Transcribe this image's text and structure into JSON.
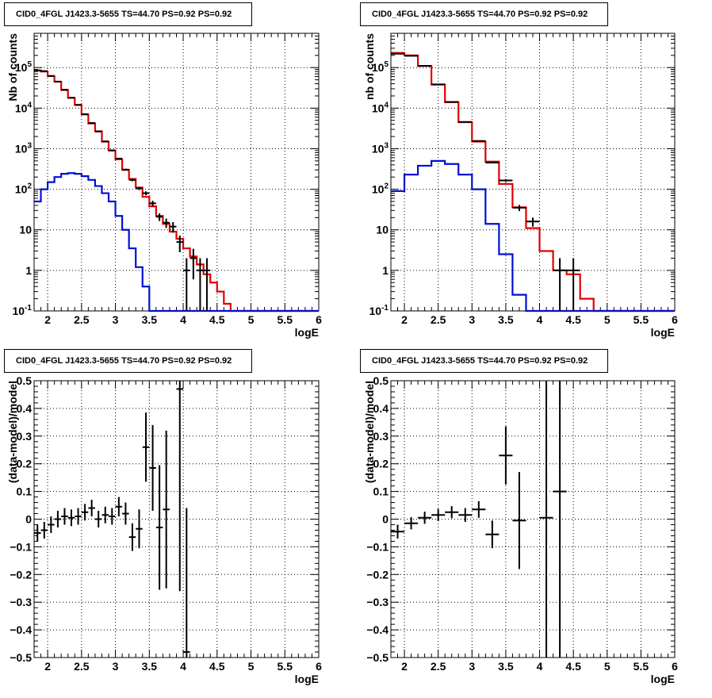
{
  "colors": {
    "data": "#000000",
    "model": "#e00000",
    "source": "#0010d0",
    "grid": "#000000"
  },
  "chart_data": [
    {
      "type": "line",
      "title": "CID0_4FGL J1423.3-5655 TS=44.70 PS=0.92 PS=0.92",
      "xlabel": "logE",
      "ylabel": "Nb of counts",
      "yscale": "log",
      "xlim": [
        1.8,
        6.0
      ],
      "ylim": [
        0.1,
        700000
      ],
      "xticks": [
        "2",
        "2.5",
        "3",
        "3.5",
        "4",
        "4.5",
        "5",
        "5.5",
        "6"
      ],
      "yticks": [
        "10^{-1}",
        "1",
        "10",
        "10^{2}",
        "10^{3}",
        "10^{4}",
        "10^{5}"
      ],
      "grid": true,
      "bin_edges": [
        1.8,
        1.9,
        2.0,
        2.1,
        2.2,
        2.3,
        2.4,
        2.5,
        2.6,
        2.7,
        2.8,
        2.9,
        3.0,
        3.1,
        3.2,
        3.3,
        3.4,
        3.5,
        3.6,
        3.7,
        3.8,
        3.9,
        4.0,
        4.1,
        4.2,
        4.3,
        4.4,
        4.5,
        4.6,
        4.7,
        4.8,
        4.9,
        5.0,
        5.1,
        5.2,
        5.3,
        5.4,
        5.5,
        5.6,
        5.7,
        5.8,
        5.9,
        6.0
      ],
      "series": [
        {
          "role": "model",
          "style": "step",
          "values": [
            85000,
            80000,
            62000,
            45000,
            28000,
            18000,
            12000,
            7000,
            4200,
            2700,
            1500,
            900,
            550,
            300,
            180,
            110,
            65,
            38,
            22,
            14,
            9,
            6,
            3.5,
            2.2,
            1.4,
            0.8,
            0.5,
            0.3,
            0.15,
            0.1,
            0.1,
            0.1,
            0.1,
            0.1,
            0.1,
            0.1,
            0.1,
            0.1,
            0.1,
            0.1,
            0.1,
            0.1
          ]
        },
        {
          "role": "source",
          "style": "step",
          "values": [
            50,
            100,
            150,
            200,
            240,
            250,
            240,
            210,
            170,
            120,
            80,
            50,
            22,
            10,
            3.5,
            1.2,
            0.4,
            0.1,
            0.1,
            0.1,
            0.1,
            0.1,
            0.1,
            0.1,
            0.1,
            0.1,
            0.1,
            0.1,
            0.1,
            0.1,
            0.1,
            0.1,
            0.1,
            0.1,
            0.1,
            0.1,
            0.1,
            0.1,
            0.1,
            0.1,
            0.1,
            0.1
          ]
        },
        {
          "role": "data",
          "style": "errorbar",
          "points": [
            {
              "x": 1.85,
              "y": 85000,
              "ylo": 84700,
              "yhi": 85300
            },
            {
              "x": 1.95,
              "y": 82000,
              "ylo": 81700,
              "yhi": 82300
            },
            {
              "x": 2.05,
              "y": 62000,
              "ylo": 61700,
              "yhi": 62300
            },
            {
              "x": 2.15,
              "y": 45000,
              "ylo": 44800,
              "yhi": 45200
            },
            {
              "x": 2.25,
              "y": 28500,
              "ylo": 28300,
              "yhi": 28700
            },
            {
              "x": 2.35,
              "y": 18000,
              "ylo": 17870,
              "yhi": 18130
            },
            {
              "x": 2.45,
              "y": 12000,
              "ylo": 11890,
              "yhi": 12110
            },
            {
              "x": 2.55,
              "y": 7100,
              "ylo": 7020,
              "yhi": 7180
            },
            {
              "x": 2.65,
              "y": 4300,
              "ylo": 4230,
              "yhi": 4370
            },
            {
              "x": 2.75,
              "y": 2650,
              "ylo": 2600,
              "yhi": 2700
            },
            {
              "x": 2.85,
              "y": 1510,
              "ylo": 1470,
              "yhi": 1550
            },
            {
              "x": 2.95,
              "y": 910,
              "ylo": 880,
              "yhi": 940
            },
            {
              "x": 3.05,
              "y": 570,
              "ylo": 546,
              "yhi": 594
            },
            {
              "x": 3.15,
              "y": 305,
              "ylo": 288,
              "yhi": 322
            },
            {
              "x": 3.25,
              "y": 170,
              "ylo": 157,
              "yhi": 183
            },
            {
              "x": 3.35,
              "y": 105,
              "ylo": 95,
              "yhi": 115
            },
            {
              "x": 3.45,
              "y": 80,
              "ylo": 71,
              "yhi": 89
            },
            {
              "x": 3.55,
              "y": 45,
              "ylo": 38,
              "yhi": 52
            },
            {
              "x": 3.65,
              "y": 21,
              "ylo": 16.5,
              "yhi": 25.5
            },
            {
              "x": 3.75,
              "y": 15,
              "ylo": 11.1,
              "yhi": 18.9
            },
            {
              "x": 3.85,
              "y": 12,
              "ylo": 8.5,
              "yhi": 15.5
            },
            {
              "x": 3.95,
              "y": 5,
              "ylo": 2.8,
              "yhi": 7.2
            },
            {
              "x": 4.05,
              "y": 1,
              "ylo": 0.1,
              "yhi": 2.0
            },
            {
              "x": 4.15,
              "y": 2,
              "ylo": 0.6,
              "yhi": 3.4
            },
            {
              "x": 4.25,
              "y": 1,
              "ylo": 0.1,
              "yhi": 2.0
            },
            {
              "x": 4.35,
              "y": 1,
              "ylo": 0.1,
              "yhi": 2.0
            }
          ]
        }
      ]
    },
    {
      "type": "line",
      "title": "CID0_4FGL J1423.3-5655 TS=44.70 PS=0.92 PS=0.92",
      "xlabel": "logE",
      "ylabel": "nb of counts",
      "yscale": "log",
      "xlim": [
        1.8,
        6.0
      ],
      "ylim": [
        0.1,
        700000
      ],
      "xticks": [
        "2",
        "2.5",
        "3",
        "3.5",
        "4",
        "4.5",
        "5",
        "5.5",
        "6"
      ],
      "yticks": [
        "10^{-1}",
        "1",
        "10",
        "10^{2}",
        "10^{3}",
        "10^{4}",
        "10^{5}"
      ],
      "grid": true,
      "bin_edges": [
        1.8,
        2.0,
        2.2,
        2.4,
        2.6,
        2.8,
        3.0,
        3.2,
        3.4,
        3.6,
        3.8,
        4.0,
        4.2,
        4.4,
        4.6,
        4.8,
        5.0,
        5.2,
        5.4,
        5.6,
        5.8,
        6.0
      ],
      "series": [
        {
          "role": "model",
          "style": "step",
          "values": [
            230000,
            200000,
            110000,
            38000,
            14000,
            4500,
            1500,
            480,
            135,
            36,
            11,
            3,
            1,
            0.8,
            0.2,
            0.1,
            0.1,
            0.1,
            0.1,
            0.1,
            0.1
          ]
        },
        {
          "role": "source",
          "style": "step",
          "values": [
            90,
            230,
            380,
            500,
            420,
            230,
            100,
            14,
            2.5,
            0.25,
            0.1,
            0.1,
            0.1,
            0.1,
            0.1,
            0.1,
            0.1,
            0.1,
            0.1,
            0.1,
            0.1
          ]
        },
        {
          "role": "data",
          "style": "errorbar",
          "points": [
            {
              "x": 1.9,
              "y": 220000,
              "ylo": 219500,
              "yhi": 220500
            },
            {
              "x": 2.1,
              "y": 195000,
              "ylo": 194600,
              "yhi": 195400
            },
            {
              "x": 2.3,
              "y": 110500,
              "ylo": 110150,
              "yhi": 110850
            },
            {
              "x": 2.5,
              "y": 38500,
              "ylo": 38300,
              "yhi": 38700
            },
            {
              "x": 2.7,
              "y": 14200,
              "ylo": 14080,
              "yhi": 14320
            },
            {
              "x": 2.9,
              "y": 4560,
              "ylo": 4490,
              "yhi": 4630
            },
            {
              "x": 3.1,
              "y": 1550,
              "ylo": 1510,
              "yhi": 1590
            },
            {
              "x": 3.3,
              "y": 455,
              "ylo": 434,
              "yhi": 476
            },
            {
              "x": 3.5,
              "y": 165,
              "ylo": 152,
              "yhi": 178
            },
            {
              "x": 3.7,
              "y": 35,
              "ylo": 29,
              "yhi": 41
            },
            {
              "x": 3.9,
              "y": 16,
              "ylo": 12,
              "yhi": 20
            },
            {
              "x": 4.3,
              "y": 1,
              "ylo": 0.1,
              "yhi": 2.0
            },
            {
              "x": 4.5,
              "y": 1,
              "ylo": 0.1,
              "yhi": 2.0
            }
          ]
        }
      ]
    },
    {
      "type": "scatter",
      "title": "CID0_4FGL J1423.3-5655 TS=44.70 PS=0.92 PS=0.92",
      "xlabel": "logE",
      "ylabel": "(data-model)/model",
      "yscale": "linear",
      "xlim": [
        1.8,
        6.0
      ],
      "ylim": [
        -0.5,
        0.5
      ],
      "xticks": [
        "2",
        "2.5",
        "3",
        "3.5",
        "4",
        "4.5",
        "5",
        "5.5",
        "6"
      ],
      "yticks": [
        "−0.5",
        "−0.4",
        "−0.3",
        "−0.2",
        "−0.1",
        "0",
        "0.1",
        "0.2",
        "0.3",
        "0.4",
        "0.5"
      ],
      "grid": true,
      "xhalfwidth": 0.05,
      "series": [
        {
          "role": "data",
          "style": "errorbar",
          "points": [
            {
              "x": 1.85,
              "y": -0.05,
              "err": 0.03
            },
            {
              "x": 1.95,
              "y": -0.04,
              "err": 0.03
            },
            {
              "x": 2.05,
              "y": -0.02,
              "err": 0.03
            },
            {
              "x": 2.15,
              "y": 0.0,
              "err": 0.03
            },
            {
              "x": 2.25,
              "y": 0.01,
              "err": 0.03
            },
            {
              "x": 2.35,
              "y": 0.005,
              "err": 0.03
            },
            {
              "x": 2.45,
              "y": 0.01,
              "err": 0.03
            },
            {
              "x": 2.55,
              "y": 0.025,
              "err": 0.03
            },
            {
              "x": 2.65,
              "y": 0.04,
              "err": 0.03
            },
            {
              "x": 2.75,
              "y": 0.0,
              "err": 0.03
            },
            {
              "x": 2.85,
              "y": 0.015,
              "err": 0.03
            },
            {
              "x": 2.95,
              "y": 0.01,
              "err": 0.03
            },
            {
              "x": 3.05,
              "y": 0.045,
              "err": 0.035
            },
            {
              "x": 3.15,
              "y": 0.02,
              "err": 0.04
            },
            {
              "x": 3.25,
              "y": -0.065,
              "err": 0.05
            },
            {
              "x": 3.35,
              "y": -0.035,
              "err": 0.07
            },
            {
              "x": 3.45,
              "y": 0.26,
              "err": 0.125
            },
            {
              "x": 3.55,
              "y": 0.185,
              "err": 0.155
            },
            {
              "x": 3.65,
              "y": -0.03,
              "err": 0.225
            },
            {
              "x": 3.75,
              "y": 0.035,
              "err": 0.285
            },
            {
              "x": 3.95,
              "y": 0.47,
              "err": 0.73
            },
            {
              "x": 4.05,
              "y": -0.48,
              "err": 0.52
            }
          ]
        }
      ]
    },
    {
      "type": "scatter",
      "title": "CID0_4FGL J1423.3-5655 TS=44.70 PS=0.92 PS=0.92",
      "xlabel": "logE",
      "ylabel": "(data-model)/model",
      "yscale": "linear",
      "xlim": [
        1.8,
        6.0
      ],
      "ylim": [
        -0.5,
        0.5
      ],
      "xticks": [
        "2",
        "2.5",
        "3",
        "3.5",
        "4",
        "4.5",
        "5",
        "5.5",
        "6"
      ],
      "yticks": [
        "−0.5",
        "−0.4",
        "−0.3",
        "−0.2",
        "−0.1",
        "0",
        "0.1",
        "0.2",
        "0.3",
        "0.4",
        "0.5"
      ],
      "grid": true,
      "xhalfwidth": 0.1,
      "series": [
        {
          "role": "data",
          "style": "errorbar",
          "points": [
            {
              "x": 1.9,
              "y": -0.045,
              "err": 0.025
            },
            {
              "x": 2.1,
              "y": -0.015,
              "err": 0.022
            },
            {
              "x": 2.3,
              "y": 0.005,
              "err": 0.022
            },
            {
              "x": 2.5,
              "y": 0.015,
              "err": 0.022
            },
            {
              "x": 2.7,
              "y": 0.025,
              "err": 0.022
            },
            {
              "x": 2.9,
              "y": 0.015,
              "err": 0.025
            },
            {
              "x": 3.1,
              "y": 0.035,
              "err": 0.03
            },
            {
              "x": 3.3,
              "y": -0.055,
              "err": 0.05
            },
            {
              "x": 3.5,
              "y": 0.23,
              "err": 0.105
            },
            {
              "x": 3.7,
              "y": -0.005,
              "err": 0.175
            },
            {
              "x": 4.1,
              "y": 0.005,
              "err": 1.2
            },
            {
              "x": 4.3,
              "y": 0.1,
              "err": 1.2
            }
          ]
        }
      ]
    }
  ]
}
